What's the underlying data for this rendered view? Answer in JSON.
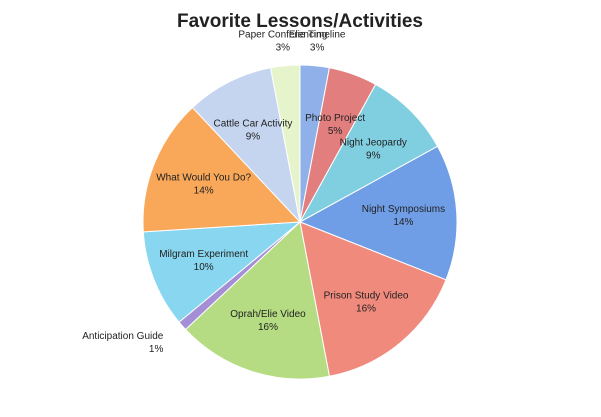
{
  "chart_data": {
    "type": "pie",
    "title": "Favorite Lessons/Activities",
    "categories": [
      "Elie Timeline",
      "Photo Project",
      "Night Jeopardy",
      "Night Symposiums",
      "Prison Study Video",
      "Oprah/Elie Video",
      "Anticipation Guide",
      "Milgram Experiment",
      "What Would You Do?",
      "Cattle Car Activity",
      "Paper Conferencing"
    ],
    "values": [
      3,
      5,
      9,
      14,
      16,
      16,
      1,
      10,
      14,
      9,
      3
    ],
    "value_labels": [
      "3%",
      "5%",
      "9%",
      "14%",
      "16%",
      "16%",
      "1%",
      "10%",
      "14%",
      "9%",
      "3%"
    ],
    "colors": [
      "#8fb0e8",
      "#e27e7e",
      "#80cfe0",
      "#6f9ee6",
      "#f08a7c",
      "#b5dc82",
      "#a48fd6",
      "#88d6ef",
      "#f9a85a",
      "#c6d5ef",
      "#e6f4cc"
    ]
  }
}
